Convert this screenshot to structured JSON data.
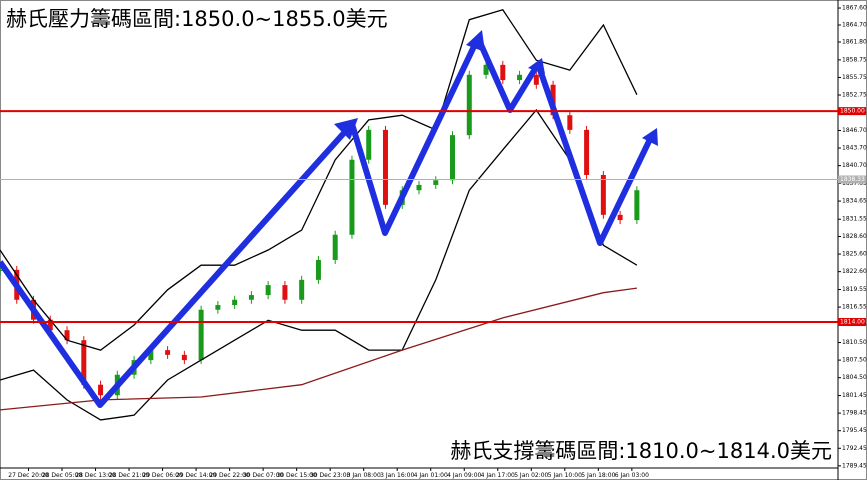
{
  "chart_data": {
    "type": "candlestick",
    "annotations": [
      "赫氏壓力籌碼區間:1850.0~1855.0美元",
      "赫氏支撐籌碼區間:1810.0~1814.0美元"
    ],
    "ylim": [
      1788.4,
      1868.97
    ],
    "yticks": [
      {
        "value": 1867.6,
        "label": "1867.60"
      },
      {
        "value": 1864.7,
        "label": "1864.70"
      },
      {
        "value": 1861.8,
        "label": "1861.80"
      },
      {
        "value": 1858.75,
        "label": "1858.75"
      },
      {
        "value": 1855.75,
        "label": "1855.75"
      },
      {
        "value": 1852.75,
        "label": "1852.75"
      },
      {
        "value": 1849.75,
        "label": "1849.75"
      },
      {
        "value": 1846.7,
        "label": "1846.70"
      },
      {
        "value": 1843.7,
        "label": "1843.70"
      },
      {
        "value": 1840.7,
        "label": "1840.70"
      },
      {
        "value": 1837.65,
        "label": "1837.65"
      },
      {
        "value": 1834.65,
        "label": "1834.65"
      },
      {
        "value": 1831.55,
        "label": "1831.55"
      },
      {
        "value": 1828.6,
        "label": "1828.60"
      },
      {
        "value": 1825.6,
        "label": "1825.60"
      },
      {
        "value": 1822.6,
        "label": "1822.60"
      },
      {
        "value": 1819.55,
        "label": "1819.55"
      },
      {
        "value": 1816.55,
        "label": "1816.55"
      },
      {
        "value": 1813.55,
        "label": "1813.55"
      },
      {
        "value": 1810.5,
        "label": "1810.50"
      },
      {
        "value": 1807.5,
        "label": "1807.50"
      },
      {
        "value": 1804.5,
        "label": "1804.50"
      },
      {
        "value": 1801.45,
        "label": "1801.45"
      },
      {
        "value": 1798.45,
        "label": "1798.45"
      },
      {
        "value": 1795.45,
        "label": "1795.45"
      },
      {
        "value": 1792.45,
        "label": "1792.45"
      },
      {
        "value": 1789.45,
        "label": "1789.45"
      }
    ],
    "xlim": [
      -0.85,
      24.15
    ],
    "xticks": [
      {
        "value": 0,
        "label": "27 Dec 20:00"
      },
      {
        "value": 1,
        "label": "28 Dec 05:00"
      },
      {
        "value": 2,
        "label": "28 Dec 13:00"
      },
      {
        "value": 3,
        "label": "28 Dec 21:00"
      },
      {
        "value": 4,
        "label": "29 Dec 06:00"
      },
      {
        "value": 5,
        "label": "29 Dec 14:00"
      },
      {
        "value": 6,
        "label": "29 Dec 22:00"
      },
      {
        "value": 7,
        "label": "30 Dec 07:00"
      },
      {
        "value": 8,
        "label": "30 Dec 15:00"
      },
      {
        "value": 9,
        "label": "30 Dec 23:00"
      },
      {
        "value": 10,
        "label": "3 Jan 08:00"
      },
      {
        "value": 11,
        "label": "3 Jan 16:00"
      },
      {
        "value": 12,
        "label": "4 Jan 01:00"
      },
      {
        "value": 13,
        "label": "4 Jan 09:00"
      },
      {
        "value": 14,
        "label": "4 Jan 17:00"
      },
      {
        "value": 15,
        "label": "5 Jan 02:00"
      },
      {
        "value": 16,
        "label": "5 Jan 10:00"
      },
      {
        "value": 17,
        "label": "5 Jan 18:00"
      },
      {
        "value": 18,
        "label": "6 Jan 03:00"
      }
    ],
    "hlines": [
      {
        "value": 1850.0,
        "label": "1850.00",
        "color": "#e00000"
      },
      {
        "value": 1814.0,
        "label": "1814.00",
        "color": "#e00000"
      },
      {
        "value": 1838.33,
        "label": "1838.33",
        "color": "#b0b0b0"
      }
    ],
    "series": [
      {
        "style": "candle",
        "color": "#1a9a1a",
        "down_color": "#e01010",
        "x": [
          -0.85,
          -0.35,
          0.15,
          0.65,
          1.15,
          1.65,
          2.15,
          2.65,
          3.15,
          3.65,
          4.15,
          4.65,
          5.15,
          5.65,
          6.15,
          6.65,
          7.15,
          7.65,
          8.15,
          8.65,
          9.15,
          9.65,
          10.15,
          10.65,
          11.15,
          11.65,
          12.15,
          12.65,
          13.15,
          13.65,
          14.15,
          14.65,
          15.15,
          15.65,
          16.15,
          16.65,
          17.15,
          17.65,
          18.15
        ],
        "values": [
          1822.9,
          1817.8,
          1814.4,
          1812.6,
          1810.9,
          1803.3,
          1801.5,
          1805.0,
          1807.5,
          1809.2,
          1808.4,
          1807.5,
          1816.1,
          1816.9,
          1817.8,
          1818.6,
          1820.3,
          1817.8,
          1821.2,
          1824.6,
          1828.9,
          1841.7,
          1846.8,
          1834.0,
          1836.5,
          1837.4,
          1838.2,
          1845.9,
          1856.2,
          1857.9,
          1855.3,
          1856.2,
          1854.5,
          1849.3,
          1846.8,
          1839.1,
          1832.3,
          1831.4,
          1836.5
        ]
      },
      {
        "style": "line",
        "color": "#000000",
        "x": [
          -0.85,
          0.15,
          1.15,
          2.15,
          3.15,
          4.15,
          5.15,
          6.15,
          7.15,
          8.15,
          9.15,
          10.15,
          11.15,
          12.15,
          13.15,
          14.15,
          15.15,
          16.15,
          17.15,
          18.15
        ],
        "values": [
          1826.3,
          1817.8,
          1810.9,
          1809.2,
          1813.5,
          1819.5,
          1823.7,
          1823.7,
          1826.3,
          1829.7,
          1841.7,
          1848.5,
          1849.3,
          1846.8,
          1865.6,
          1867.3,
          1858.7,
          1857.0,
          1864.7,
          1852.8
        ]
      },
      {
        "style": "line",
        "color": "#000000",
        "x": [
          -0.85,
          0.15,
          1.15,
          2.15,
          3.15,
          4.15,
          5.15,
          6.15,
          7.15,
          8.15,
          9.15,
          10.15,
          11.15,
          12.15,
          13.15,
          14.15,
          15.15,
          16.15,
          17.15,
          18.15
        ],
        "values": [
          1804.1,
          1805.8,
          1800.7,
          1797.3,
          1798.1,
          1804.1,
          1807.5,
          1810.9,
          1814.3,
          1812.6,
          1812.6,
          1809.2,
          1809.2,
          1821.2,
          1836.5,
          1843.4,
          1850.2,
          1841.7,
          1827.1,
          1823.7
        ]
      },
      {
        "style": "line",
        "color": "#8b1a1a",
        "x": [
          -0.85,
          2.15,
          5.15,
          8.15,
          11.15,
          14.15,
          17.15,
          18.15
        ],
        "values": [
          1799.0,
          1800.7,
          1801.2,
          1803.3,
          1809.2,
          1814.7,
          1819.0,
          1819.8
        ]
      }
    ]
  }
}
